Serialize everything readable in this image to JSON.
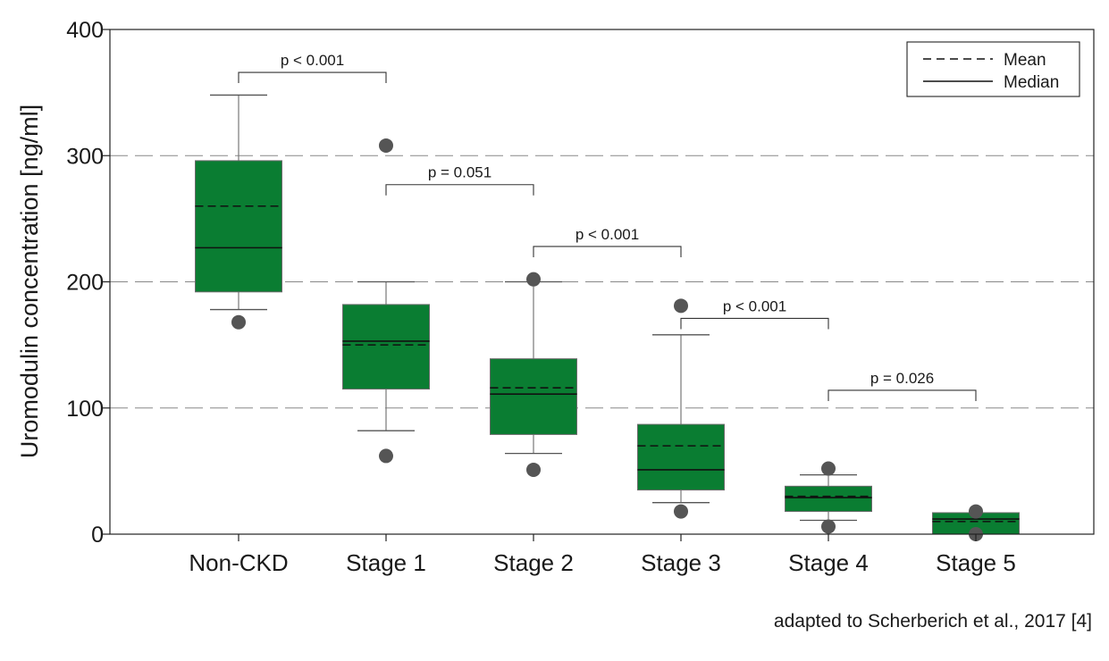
{
  "chart_data": {
    "type": "box",
    "title": "",
    "xlabel": "",
    "ylabel": "Uromodulin concentration [ng/ml]",
    "ylim": [
      0,
      400
    ],
    "yticks": [
      0,
      100,
      200,
      300,
      400
    ],
    "grid": "horizontal dashed at 100, 200, 300",
    "colors": {
      "box": "#0a7d32",
      "marker": "#555555",
      "whisker": "#777777",
      "frame": "#222222"
    },
    "categories": [
      "Non-CKD",
      "Stage 1",
      "Stage 2",
      "Stage 3",
      "Stage 4",
      "Stage 5"
    ],
    "boxes": [
      {
        "name": "Non-CKD",
        "q1": 192,
        "median": 227,
        "mean": 260,
        "q3": 296,
        "whisker_low": 178,
        "whisker_high": 348,
        "outliers": [
          168
        ]
      },
      {
        "name": "Stage 1",
        "q1": 115,
        "median": 153,
        "mean": 150,
        "q3": 182,
        "whisker_low": 82,
        "whisker_high": 200,
        "outliers": [
          308,
          62
        ]
      },
      {
        "name": "Stage 2",
        "q1": 79,
        "median": 111,
        "mean": 116,
        "q3": 139,
        "whisker_low": 64,
        "whisker_high": 200,
        "outliers": [
          202,
          51
        ]
      },
      {
        "name": "Stage 3",
        "q1": 35,
        "median": 51,
        "mean": 70,
        "q3": 87,
        "whisker_low": 25,
        "whisker_high": 158,
        "outliers": [
          181,
          18
        ]
      },
      {
        "name": "Stage 4",
        "q1": 18,
        "median": 29,
        "mean": 30,
        "q3": 38,
        "whisker_low": 11,
        "whisker_high": 47,
        "outliers": [
          52,
          6
        ]
      },
      {
        "name": "Stage 5",
        "q1": 0,
        "median": 12,
        "mean": 10,
        "q3": 17,
        "whisker_low": 0,
        "whisker_high": 17,
        "outliers": [
          18,
          0
        ]
      }
    ],
    "comparisons": [
      {
        "from": 0,
        "to": 1,
        "label": "p < 0.001",
        "level": 366
      },
      {
        "from": 1,
        "to": 2,
        "label": "p = 0.051",
        "level": 277
      },
      {
        "from": 2,
        "to": 3,
        "label": "p < 0.001",
        "level": 228
      },
      {
        "from": 3,
        "to": 4,
        "label": "p < 0.001",
        "level": 171
      },
      {
        "from": 4,
        "to": 5,
        "label": "p = 0.026",
        "level": 114
      }
    ],
    "legend": {
      "position": "top-right",
      "entries": [
        {
          "label": "Mean",
          "style": "dashed"
        },
        {
          "label": "Median",
          "style": "solid"
        }
      ]
    }
  },
  "source_note": "adapted to Scherberich et al., 2017 [4]"
}
